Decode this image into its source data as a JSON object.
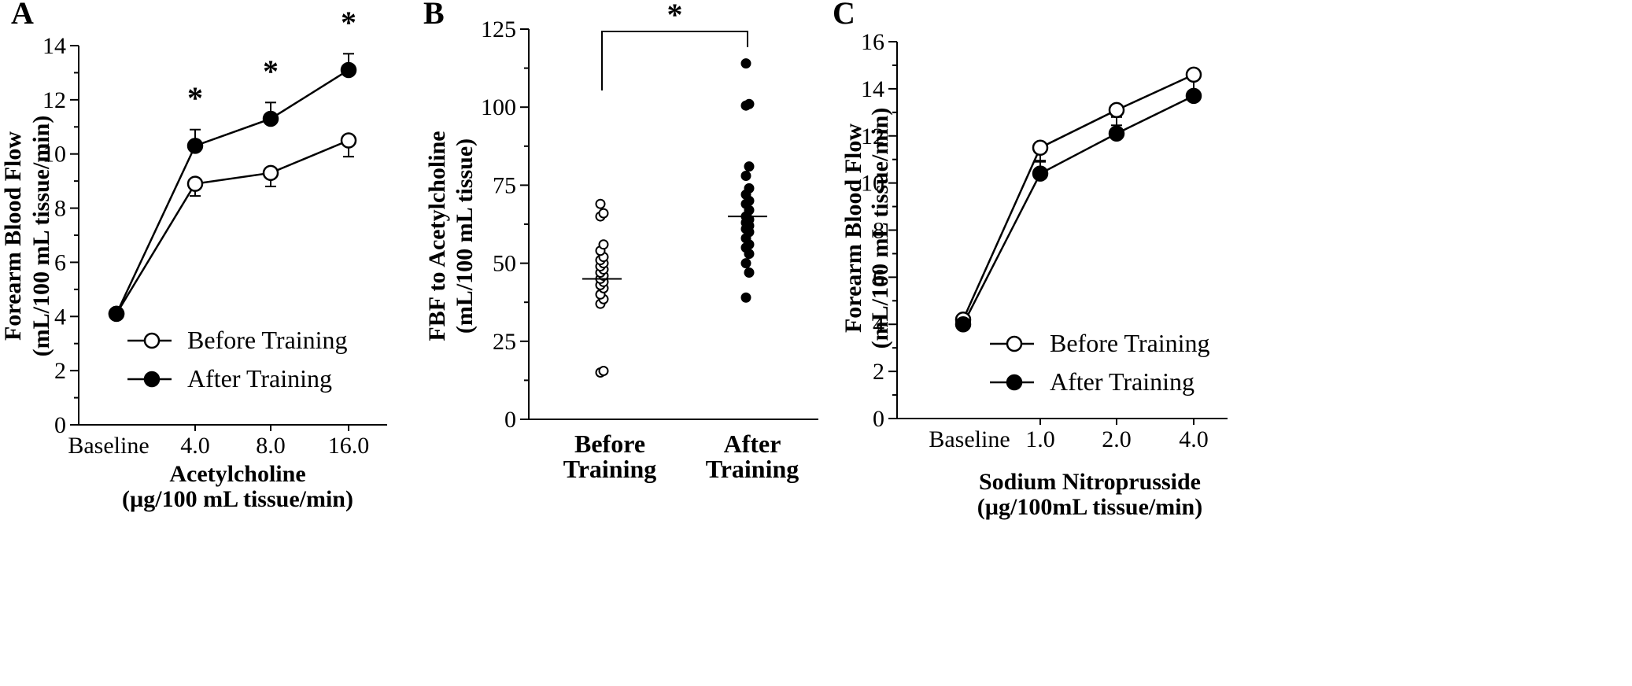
{
  "chart_data": [
    {
      "panel": "A",
      "type": "line",
      "categories": [
        "Baseline",
        "4.0",
        "8.0",
        "16.0"
      ],
      "xlabel": [
        "Acetylcholine",
        "(µg/100 mL tissue/min)"
      ],
      "ylabel": [
        "Forearm Blood Flow",
        "(mL/100 mL tissue/min)"
      ],
      "ylim": [
        0,
        14
      ],
      "yticks": [
        0,
        2,
        4,
        6,
        8,
        10,
        12,
        14
      ],
      "series": [
        {
          "name": "Before Training",
          "marker": "open-circle",
          "values": [
            4.1,
            8.9,
            9.3,
            10.5
          ],
          "errors": [
            0,
            0.45,
            0.5,
            0.6
          ]
        },
        {
          "name": "After Training",
          "marker": "filled-circle",
          "values": [
            4.1,
            10.3,
            11.3,
            13.1
          ],
          "errors": [
            0,
            0.6,
            0.6,
            0.6
          ]
        }
      ],
      "significance": [
        {
          "category": "4.0",
          "label": "*"
        },
        {
          "category": "8.0",
          "label": "*"
        },
        {
          "category": "16.0",
          "label": "*"
        }
      ],
      "legend_position": "bottom-right"
    },
    {
      "panel": "B",
      "type": "scatter",
      "categories": [
        "Before\nTraining",
        "After\nTraining"
      ],
      "ylabel": [
        "FBF to Acetylcholine",
        "(mL/100 mL tissue)"
      ],
      "ylim": [
        0,
        125
      ],
      "yticks": [
        0,
        25,
        50,
        75,
        100,
        125
      ],
      "series": [
        {
          "name": "Before Training",
          "marker": "open-circle",
          "mean": 45,
          "values": [
            15,
            15.5,
            37,
            38.5,
            40,
            42,
            43,
            44,
            45,
            46,
            47,
            48,
            49,
            50,
            51,
            52,
            54,
            56,
            65,
            66,
            69
          ]
        },
        {
          "name": "After Training",
          "marker": "filled-circle",
          "mean": 65,
          "values": [
            39,
            47,
            50,
            53,
            55,
            56,
            58,
            60,
            61,
            62,
            63,
            64,
            65,
            67,
            69,
            70,
            72,
            74,
            78,
            81,
            100.5,
            101,
            114
          ]
        }
      ],
      "significance": [
        {
          "between": [
            "Before Training",
            "After Training"
          ],
          "label": "*"
        }
      ]
    },
    {
      "panel": "C",
      "type": "line",
      "categories": [
        "Baseline",
        "1.0",
        "2.0",
        "4.0"
      ],
      "xlabel": [
        "Sodium Nitroprusside",
        "(µg/100mL tissue/min)"
      ],
      "ylabel": [
        "Forearm Blood Flow",
        "(mL/100 mL tissue/min)"
      ],
      "ylim": [
        0,
        16
      ],
      "yticks": [
        0,
        2,
        4,
        6,
        8,
        10,
        12,
        14,
        16
      ],
      "series": [
        {
          "name": "Before Training",
          "marker": "open-circle",
          "values": [
            4.2,
            11.5,
            13.1,
            14.6
          ],
          "errors": [
            0,
            0.6,
            0.65,
            0.75
          ]
        },
        {
          "name": "After Training",
          "marker": "filled-circle",
          "values": [
            4.0,
            10.4,
            12.1,
            13.7
          ],
          "errors": [
            0,
            0.55,
            0.7,
            0.7
          ]
        }
      ],
      "legend_position": "bottom-right"
    }
  ]
}
